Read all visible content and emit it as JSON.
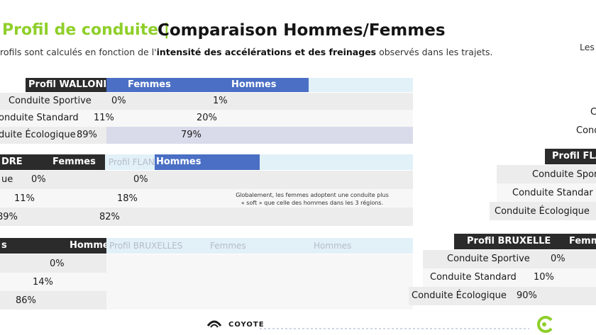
{
  "header": {
    "title_ghost": "Profil de conduite |",
    "title": "Comparaison Hommes/Femmes",
    "subtitle_pre": "rofils sont calculés en fonction de l'",
    "subtitle_bold1": "intensité des accélérations et des freinages",
    "subtitle_post": " observés dans les trajets.",
    "right_fragment": "Les"
  },
  "wallonie": {
    "header_profile": "Profil WALLONIE",
    "header_women": "Femmes",
    "header_men": "Hommes",
    "rows": [
      {
        "label": "Conduite Sportive",
        "women": "0%",
        "men": "1%"
      },
      {
        "label": "onduite Standard",
        "women": "11%",
        "men": "20%"
      },
      {
        "label": "duite Écologique",
        "women": "89%",
        "men": "79%"
      }
    ]
  },
  "flandre": {
    "header_profile": "DRE",
    "header_women": "Femmes",
    "header_ghost": "Profil FLANDRE",
    "header_men": "Hommes",
    "rows": [
      {
        "label": "ue",
        "women": "0%",
        "men": "0%"
      },
      {
        "label": "",
        "women": "11%",
        "men": "18%"
      },
      {
        "label": "",
        "women": "89%",
        "men": "82%"
      }
    ]
  },
  "note": "Globalement, les femmes adoptent une conduite plus « soft » que celle des hommes dans les 3 régions.",
  "third_table": {
    "header_left": "s",
    "header_men": "Hommes",
    "ghost_headers": [
      "Profil BRUXELLES",
      "Femmes",
      "Hommes"
    ],
    "values": [
      "0%",
      "14%",
      "86%"
    ]
  },
  "right_panel": {
    "c_fragment": "C",
    "cond_fragment": "Cond",
    "flandre_header": "Profil FLAN",
    "flandre_rows": [
      "Conduite Spor",
      "Conduite Standar",
      "Conduite Écologique"
    ]
  },
  "bruxelles": {
    "header_profile": "Profil BRUXELLES",
    "header_women": "Femm",
    "rows": [
      {
        "label": "Conduite Sportive",
        "women": "0%"
      },
      {
        "label": "Conduite Standard",
        "women": "10%"
      },
      {
        "label": "Conduite Écologique",
        "women": "90%"
      }
    ]
  },
  "footer": {
    "logo_text": "COYOTE"
  },
  "colors": {
    "accent_green": "#8fcf2a",
    "header_blue": "#4a6fc4",
    "header_dark": "#2b2b2b"
  }
}
